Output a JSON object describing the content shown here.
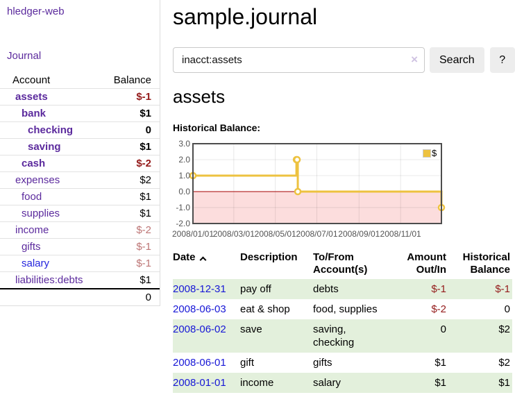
{
  "sidebar": {
    "brand": "hledger-web",
    "nav_journal": "Journal",
    "table": {
      "header_account": "Account",
      "header_balance": "Balance",
      "rows": [
        {
          "name": "assets",
          "level": 1,
          "balance": "$-1",
          "bold": true,
          "neg": "strong"
        },
        {
          "name": "bank",
          "level": 2,
          "balance": "$1",
          "bold": true
        },
        {
          "name": "checking",
          "level": 3,
          "balance": "0",
          "bold": true
        },
        {
          "name": "saving",
          "level": 3,
          "balance": "$1",
          "bold": true
        },
        {
          "name": "cash",
          "level": 2,
          "balance": "$-2",
          "bold": true,
          "neg": "strong"
        },
        {
          "name": "expenses",
          "level": 1,
          "balance": "$2"
        },
        {
          "name": "food",
          "level": 2,
          "balance": "$1"
        },
        {
          "name": "supplies",
          "level": 2,
          "balance": "$1"
        },
        {
          "name": "income",
          "level": 1,
          "balance": "$-2",
          "neg": "muted"
        },
        {
          "name": "gifts",
          "level": 2,
          "balance": "$-1",
          "neg": "muted"
        },
        {
          "name": "salary",
          "level": 2,
          "balance": "$-1",
          "neg": "muted",
          "link": "blue"
        },
        {
          "name": "liabilities:debts",
          "level": 1,
          "balance": "$1"
        }
      ],
      "total": "0"
    }
  },
  "main": {
    "title": "sample.journal",
    "search": {
      "value": "inacct:assets",
      "clear": "×",
      "button_label": "Search",
      "help_label": "?"
    },
    "heading": "assets",
    "chart_title": "Historical Balance:"
  },
  "chart_data": {
    "type": "line",
    "title": "Historical Balance",
    "step": true,
    "series": [
      {
        "name": "$",
        "color": "#edc240",
        "points": [
          [
            "2008-01-01",
            1
          ],
          [
            "2008-06-01",
            2
          ],
          [
            "2008-06-02",
            2
          ],
          [
            "2008-06-03",
            0
          ],
          [
            "2008-12-31",
            -1
          ]
        ]
      }
    ],
    "x_range": [
      "2008-01-01",
      "2008-12-31"
    ],
    "ylim": [
      -2,
      3
    ],
    "y_ticks": [
      "3.0",
      "2.0",
      "1.0",
      "0.0",
      "-1.0",
      "-2.0"
    ],
    "x_ticks": [
      {
        "date": "2008-01-01",
        "label": "2008/01/01"
      },
      {
        "date": "2008-03-01",
        "label": "2008/03/01"
      },
      {
        "date": "2008-05-01",
        "label": "2008/05/01"
      },
      {
        "date": "2008-07-01",
        "label": "2008/07/01"
      },
      {
        "date": "2008-09-01",
        "label": "2008/09/01"
      },
      {
        "date": "2008-11-01",
        "label": "2008/11/01"
      }
    ],
    "legend": {
      "label": "$",
      "position": "top-right"
    },
    "grid": true,
    "negative_region_color": "#fcdddd",
    "zero_line_color": "#a40000",
    "border_color": "#4d4d4d"
  },
  "register": {
    "headers": {
      "date": "Date",
      "description": "Description",
      "tofrom": "To/From Account(s)",
      "amount": "Amount Out/In",
      "balance": "Historical Balance"
    },
    "rows": [
      {
        "date": "2008-12-31",
        "description": "pay off",
        "accounts": "debts",
        "amount": "$-1",
        "balance": "$-1",
        "amount_neg": true,
        "balance_neg": true
      },
      {
        "date": "2008-06-03",
        "description": "eat & shop",
        "accounts": "food, supplies",
        "amount": "$-2",
        "balance": "0",
        "amount_neg": true
      },
      {
        "date": "2008-06-02",
        "description": "save",
        "accounts": "saving, checking",
        "amount": "0",
        "balance": "$2"
      },
      {
        "date": "2008-06-01",
        "description": "gift",
        "accounts": "gifts",
        "amount": "$1",
        "balance": "$2"
      },
      {
        "date": "2008-01-01",
        "description": "income",
        "accounts": "salary",
        "amount": "$1",
        "balance": "$1"
      }
    ]
  }
}
